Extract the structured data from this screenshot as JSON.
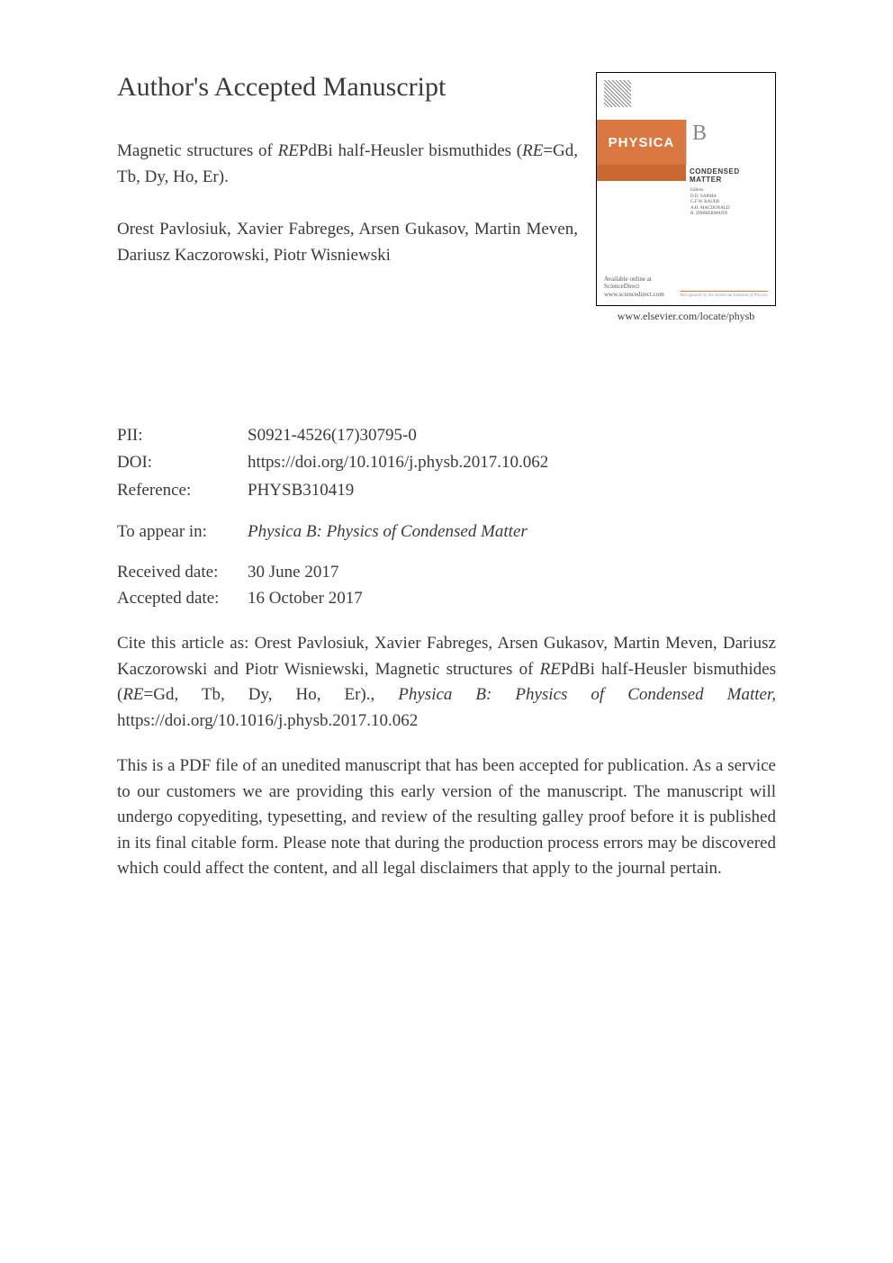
{
  "header": {
    "main_title": "Author's Accepted Manuscript",
    "article_title_pre": "Magnetic structures of ",
    "article_title_re1": "RE",
    "article_title_mid": "PdBi half-Heusler bismuthides (",
    "article_title_re2": "RE",
    "article_title_post": "=Gd, Tb, Dy, Ho, Er).",
    "authors": "Orest Pavlosiuk, Xavier Fabreges, Arsen Gukasov, Martin Meven, Dariusz Kaczorowski, Piotr Wisniewski"
  },
  "cover": {
    "physica_label": "PHYSICA",
    "b_label": "B",
    "condensed_matter": "CONDENSED MATTER",
    "editors_title": "Editors",
    "editor1": "D.D. SARMA",
    "editor2": "G.F.W. BAUER",
    "editor3": "A.H. MACDONALD",
    "editor4": "R. ZIMMERMANN",
    "sciencedirect_pre": "Available online at",
    "sciencedirect": "ScienceDirect",
    "sciencedirect_sub": "www.sciencedirect.com",
    "cover_url_text": "Recognized by the American Institute of Physics",
    "url": "www.elsevier.com/locate/physb",
    "background_color": "#ffffff",
    "accent_color": "#d97840"
  },
  "metadata": {
    "pii_label": "PII:",
    "pii_value": "S0921-4526(17)30795-0",
    "doi_label": "DOI:",
    "doi_value": "https://doi.org/10.1016/j.physb.2017.10.062",
    "reference_label": "Reference:",
    "reference_value": "PHYSB310419"
  },
  "appear": {
    "label": "To appear in:",
    "journal": "Physica B: Physics of Condensed Matter"
  },
  "dates": {
    "received_label": "Received date:",
    "received_value": "30 June 2017",
    "accepted_label": "Accepted date:",
    "accepted_value": "16 October 2017"
  },
  "citation": {
    "pre": "Cite this article as: Orest Pavlosiuk, Xavier Fabreges, Arsen Gukasov, Martin Meven, Dariusz Kaczorowski and Piotr Wisniewski, Magnetic structures of ",
    "re1": "RE",
    "mid1": "PdBi half-Heusler bismuthides (",
    "re2": "RE",
    "mid2": "=Gd, Tb, Dy, Ho, Er)., ",
    "journal": "Physica B: Physics of Condensed Matter,",
    "doi": " https://doi.org/10.1016/j.physb.2017.10.062"
  },
  "disclaimer": {
    "text": "This is a PDF file of an unedited manuscript that has been accepted for publication. As a service to our customers we are providing this early version of the manuscript. The manuscript will undergo copyediting, typesetting, and review of the resulting galley proof before it is published in its final citable form. Please note that during the production process errors may be discovered which could affect the content, and all legal disclaimers that apply to the journal pertain."
  },
  "styling": {
    "body_font": "Times New Roman",
    "body_color": "#3a3a3a",
    "title_fontsize": 30,
    "body_fontsize": 19,
    "cover_url_fontsize": 12
  }
}
